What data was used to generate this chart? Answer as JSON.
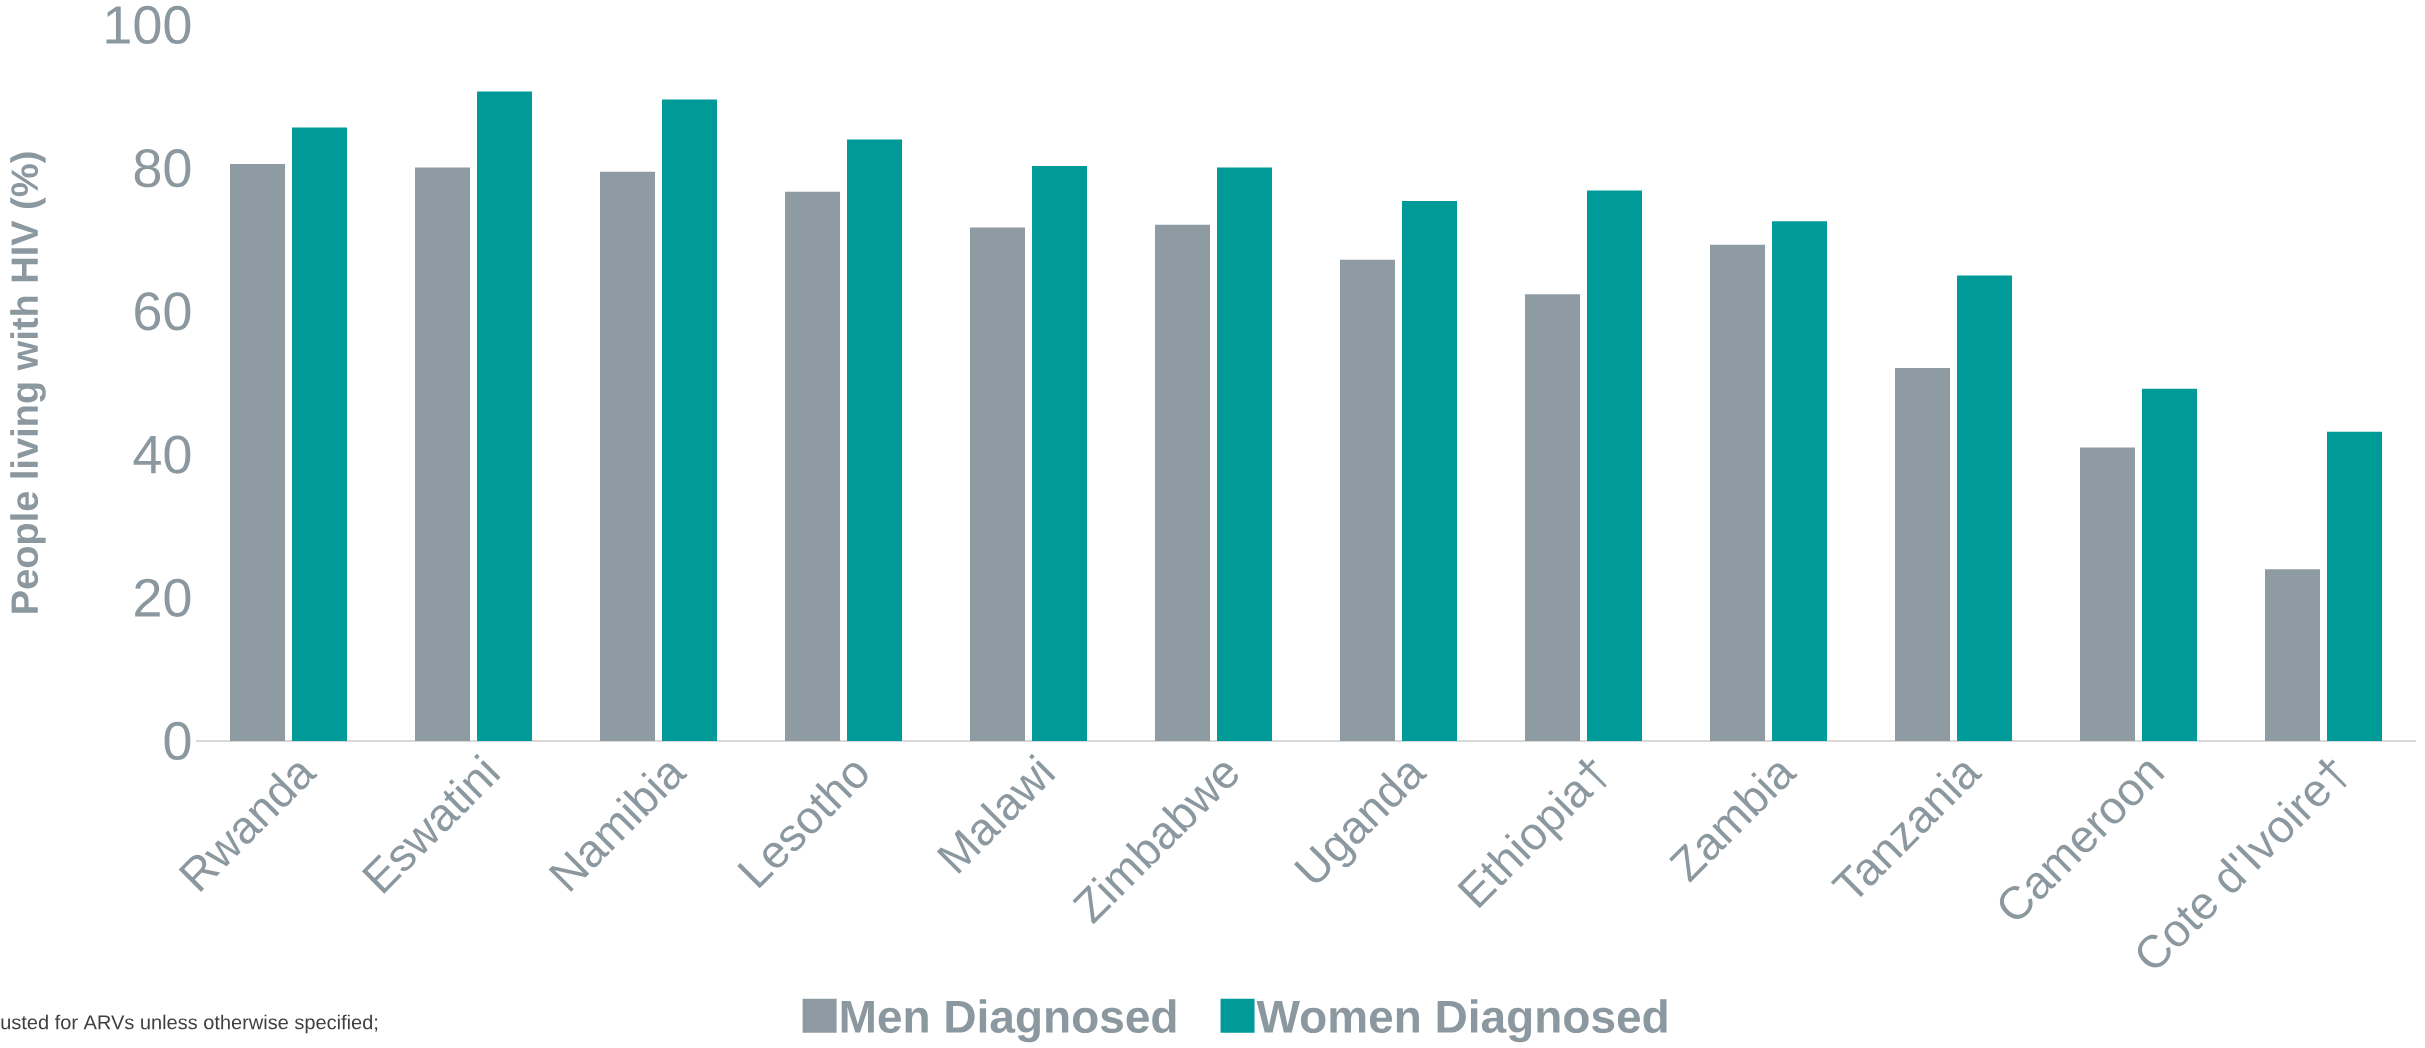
{
  "chart_data": {
    "type": "bar",
    "ylabel": "People living with HIV (%)",
    "categories": [
      "Rwanda",
      "Eswatini",
      "Namibia",
      "Lesotho",
      "Malawi",
      "Zimbabwe",
      "Uganda",
      "Ethiopia†",
      "Zambia",
      "Tanzania",
      "Cameroon",
      "Cote d'Ivoire†"
    ],
    "series": [
      {
        "name": "Men Diagnosed",
        "color": "#8f9ba3",
        "values": [
          80.6,
          80.1,
          79.5,
          76.7,
          71.7,
          72.1,
          67.2,
          62.4,
          69.3,
          52.1,
          41.0,
          24.0
        ]
      },
      {
        "name": "Women Diagnosed",
        "color": "#009b98",
        "values": [
          85.7,
          90.7,
          89.6,
          84.0,
          80.3,
          80.1,
          75.4,
          76.9,
          72.6,
          65.0,
          49.2,
          43.2
        ]
      }
    ],
    "ylim": [
      0,
      100
    ],
    "yticks": [
      0,
      20,
      40,
      60,
      80,
      100
    ],
    "legend": "bottom",
    "annotations": [
      "usted for ARVs unless otherwise specified;"
    ]
  }
}
